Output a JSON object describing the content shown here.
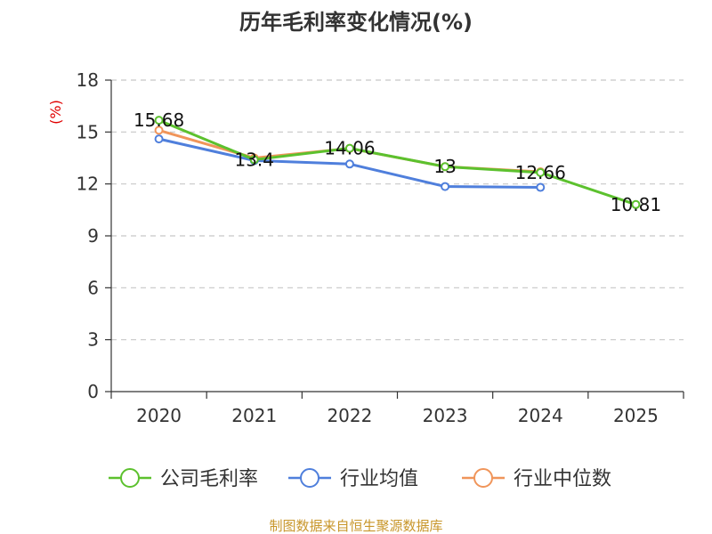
{
  "chart_data": {
    "type": "line",
    "title": "历年毛利率变化情况(%)",
    "ylabel": "(%)",
    "xlabel": "",
    "categories": [
      "2020",
      "2021",
      "2022",
      "2023",
      "2024",
      "2025"
    ],
    "ylim": [
      0,
      18
    ],
    "yticks": [
      0,
      3,
      6,
      9,
      12,
      15,
      18
    ],
    "grid": true,
    "legend_position": "bottom",
    "series": [
      {
        "name": "公司毛利率",
        "color": "#5cc12e",
        "values": [
          15.68,
          13.4,
          14.06,
          13,
          12.66,
          10.81
        ],
        "labels": [
          "15.68",
          "13.4",
          "14.06",
          "13",
          "12.66",
          "10.81"
        ]
      },
      {
        "name": "行业均值",
        "color": "#4f7fdc",
        "values": [
          14.6,
          13.35,
          13.15,
          11.85,
          11.8,
          null
        ]
      },
      {
        "name": "行业中位数",
        "color": "#f0955a",
        "values": [
          15.1,
          13.5,
          14.05,
          13.0,
          12.7,
          null
        ]
      }
    ],
    "source": "制图数据来自恒生聚源数据库"
  }
}
